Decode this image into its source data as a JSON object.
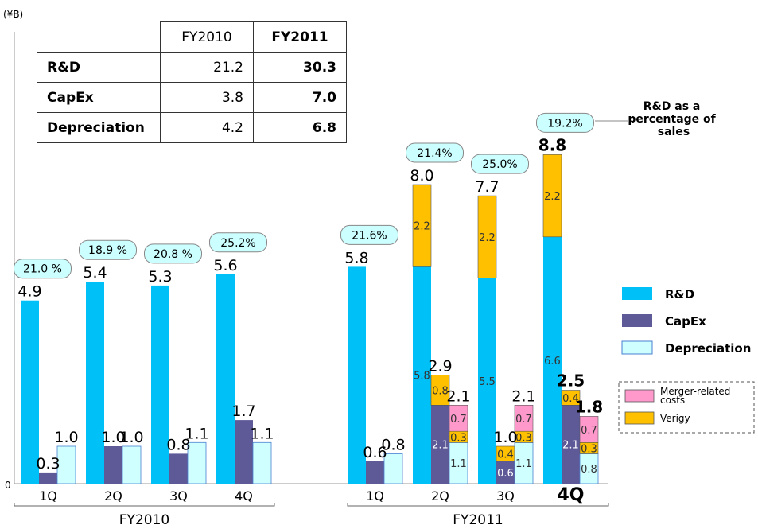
{
  "unit_label": "(¥B)",
  "zero_label": "0",
  "summary_table": {
    "columns": [
      "FY2010",
      "FY2011"
    ],
    "rows": [
      {
        "label": "R&D",
        "values": [
          "21.2",
          "30.3"
        ]
      },
      {
        "label": "CapEx",
        "values": [
          "3.8",
          "7.0"
        ]
      },
      {
        "label": "Depreciation",
        "values": [
          "4.2",
          "6.8"
        ]
      }
    ]
  },
  "pct_annotation": "R&D as a percentage of sales",
  "legend_main": [
    {
      "key": "rd",
      "label": "R&D",
      "color": "#00c0f8"
    },
    {
      "key": "capex",
      "label": "CapEx",
      "color": "#5e5a98"
    },
    {
      "key": "dep",
      "label": "Depreciation",
      "color": "#cfffff"
    }
  ],
  "legend_breakdown": [
    {
      "key": "merger",
      "label": "Merger-related costs",
      "color": "#ff99cc"
    },
    {
      "key": "verigy",
      "label": "Verigy",
      "color": "#ffc000"
    }
  ],
  "chart_data": {
    "type": "bar",
    "ylim": [
      0,
      11
    ],
    "groups": [
      {
        "name": "FY2010",
        "quarters": [
          {
            "q": "1Q",
            "pct": "21.0 %",
            "rd": {
              "total": "4.9",
              "base": 4.9
            },
            "capex": {
              "total": "0.3",
              "base": 0.3
            },
            "dep": {
              "total": "1.0",
              "base": 1.0
            }
          },
          {
            "q": "2Q",
            "pct": "18.9 %",
            "rd": {
              "total": "5.4",
              "base": 5.4
            },
            "capex": {
              "total": "1.0",
              "base": 1.0
            },
            "dep": {
              "total": "1.0",
              "base": 1.0
            }
          },
          {
            "q": "3Q",
            "pct": "20.8 %",
            "rd": {
              "total": "5.3",
              "base": 5.3
            },
            "capex": {
              "total": "0.8",
              "base": 0.8
            },
            "dep": {
              "total": "1.1",
              "base": 1.1
            }
          },
          {
            "q": "4Q",
            "pct": "25.2%",
            "rd": {
              "total": "5.6",
              "base": 5.6
            },
            "capex": {
              "total": "1.7",
              "base": 1.7
            },
            "dep": {
              "total": "1.1",
              "base": 1.1
            }
          }
        ]
      },
      {
        "name": "FY2011",
        "quarters": [
          {
            "q": "1Q",
            "pct": "21.6%",
            "rd": {
              "total": "5.8",
              "base": 5.8
            },
            "capex": {
              "total": "0.6",
              "base": 0.6
            },
            "dep": {
              "total": "0.8",
              "base": 0.8
            }
          },
          {
            "q": "2Q",
            "pct": "21.4%",
            "rd": {
              "total": "8.0",
              "base": 5.8,
              "base_label": "5.8",
              "verigy": 2.2,
              "verigy_label": "2.2"
            },
            "capex": {
              "total": "2.9",
              "base": 2.1,
              "base_label": "2.1",
              "verigy": 0.8,
              "verigy_label": "0.8"
            },
            "dep": {
              "total": "2.1",
              "base": 1.1,
              "base_label": "1.1",
              "verigy": 0.3,
              "verigy_label": "0.3",
              "merger": 0.7,
              "merger_label": "0.7"
            }
          },
          {
            "q": "3Q",
            "pct": "25.0%",
            "rd": {
              "total": "7.7",
              "base": 5.5,
              "base_label": "5.5",
              "verigy": 2.2,
              "verigy_label": "2.2"
            },
            "capex": {
              "total": "1.0",
              "base": 0.6,
              "base_label": "0.6",
              "verigy": 0.4,
              "verigy_label": "0.4"
            },
            "dep": {
              "total": "2.1",
              "base": 1.1,
              "base_label": "1.1",
              "verigy": 0.3,
              "verigy_label": "0.3",
              "merger": 0.7,
              "merger_label": "0.7"
            }
          },
          {
            "q": "4Q",
            "pct": "19.2%",
            "bold": true,
            "rd": {
              "total": "8.8",
              "base": 6.6,
              "base_label": "6.6",
              "verigy": 2.2,
              "verigy_label": "2.2"
            },
            "capex": {
              "total": "2.5",
              "base": 2.1,
              "base_label": "2.1",
              "verigy": 0.4,
              "verigy_label": "0.4"
            },
            "dep": {
              "total": "1.8",
              "base": 0.8,
              "base_label": "0.8",
              "verigy": 0.3,
              "verigy_label": "0.3",
              "merger": 0.7,
              "merger_label": "0.7"
            }
          }
        ]
      }
    ]
  }
}
